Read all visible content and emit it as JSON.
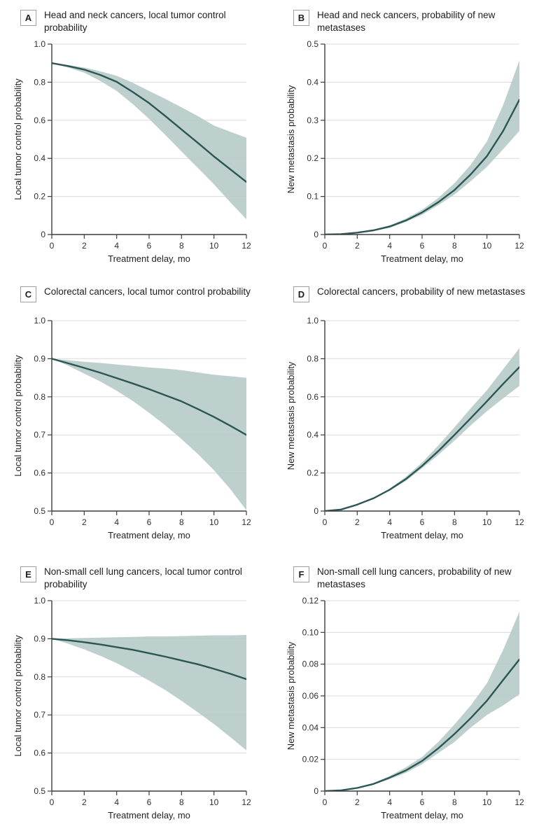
{
  "figure": {
    "colors": {
      "line": "#2b5653",
      "band": "#b5cac7",
      "band_opacity": 0.88,
      "grid": "#d9dcdb",
      "axis": "#3c3d3f",
      "text": "#1c1d1e",
      "badge_border": "#9da1a4"
    }
  },
  "chart_data": [
    {
      "type": "line",
      "panel_label": "A",
      "title": "Head and neck cancers, local tumor control probability",
      "xlabel": "Treatment delay, mo",
      "ylabel": "Local tumor control probability",
      "xlim": [
        0,
        12
      ],
      "ylim": [
        0,
        1.0
      ],
      "xtick_values": [
        0,
        2,
        4,
        6,
        8,
        10,
        12
      ],
      "xtick_labels": [
        "0",
        "2",
        "4",
        "6",
        "8",
        "10",
        "12"
      ],
      "ytick_values": [
        0,
        0.2,
        0.4,
        0.6,
        0.8,
        1.0
      ],
      "ytick_labels": [
        "0",
        "0.2",
        "0.4",
        "0.6",
        "0.8",
        "1.0"
      ],
      "x": [
        0,
        1,
        2,
        3,
        4,
        5,
        6,
        7,
        8,
        9,
        10,
        11,
        12
      ],
      "line": [
        0.9,
        0.885,
        0.866,
        0.838,
        0.802,
        0.748,
        0.69,
        0.622,
        0.552,
        0.482,
        0.41,
        0.343,
        0.276
      ],
      "band_upper": [
        0.9,
        0.89,
        0.877,
        0.857,
        0.834,
        0.797,
        0.754,
        0.712,
        0.668,
        0.622,
        0.572,
        0.54,
        0.508
      ],
      "band_lower": [
        0.9,
        0.877,
        0.85,
        0.806,
        0.754,
        0.685,
        0.607,
        0.523,
        0.436,
        0.35,
        0.264,
        0.17,
        0.08
      ],
      "grid": true,
      "legend": "none"
    },
    {
      "type": "line",
      "panel_label": "B",
      "title": "Head and neck cancers, probability of new metastases",
      "xlabel": "Treatment delay, mo",
      "ylabel": "New metastasis probability",
      "xlim": [
        0,
        12
      ],
      "ylim": [
        0,
        0.5
      ],
      "xtick_values": [
        0,
        2,
        4,
        6,
        8,
        10,
        12
      ],
      "xtick_labels": [
        "0",
        "2",
        "4",
        "6",
        "8",
        "10",
        "12"
      ],
      "ytick_values": [
        0,
        0.1,
        0.2,
        0.3,
        0.4,
        0.5
      ],
      "ytick_labels": [
        "0",
        "0.1",
        "0.2",
        "0.3",
        "0.4",
        "0.5"
      ],
      "x": [
        0,
        1,
        2,
        3,
        4,
        5,
        6,
        7,
        8,
        9,
        10,
        11,
        12
      ],
      "line": [
        0,
        0.001,
        0.005,
        0.011,
        0.021,
        0.037,
        0.058,
        0.085,
        0.117,
        0.158,
        0.206,
        0.272,
        0.354
      ],
      "band_upper": [
        0,
        0.001,
        0.006,
        0.013,
        0.024,
        0.042,
        0.065,
        0.096,
        0.135,
        0.183,
        0.245,
        0.34,
        0.457
      ],
      "band_lower": [
        0,
        0.001,
        0.004,
        0.009,
        0.018,
        0.033,
        0.052,
        0.077,
        0.105,
        0.14,
        0.178,
        0.224,
        0.272
      ],
      "grid": true,
      "legend": "none"
    },
    {
      "type": "line",
      "panel_label": "C",
      "title": "Colorectal cancers, local tumor control probability",
      "xlabel": "Treatment delay, mo",
      "ylabel": "Local tumor control probability",
      "xlim": [
        0,
        12
      ],
      "ylim": [
        0.5,
        1.0
      ],
      "xtick_values": [
        0,
        2,
        4,
        6,
        8,
        10,
        12
      ],
      "xtick_labels": [
        "0",
        "2",
        "4",
        "6",
        "8",
        "10",
        "12"
      ],
      "ytick_values": [
        0.5,
        0.6,
        0.7,
        0.8,
        0.9,
        1.0
      ],
      "ytick_labels": [
        "0.5",
        "0.6",
        "0.7",
        "0.8",
        "0.9",
        "1.0"
      ],
      "x": [
        0,
        1,
        2,
        3,
        4,
        5,
        6,
        7,
        8,
        9,
        10,
        11,
        12
      ],
      "line": [
        0.9,
        0.888,
        0.876,
        0.863,
        0.849,
        0.835,
        0.82,
        0.804,
        0.788,
        0.768,
        0.747,
        0.724,
        0.7
      ],
      "band_upper": [
        0.9,
        0.896,
        0.892,
        0.889,
        0.885,
        0.881,
        0.877,
        0.874,
        0.87,
        0.864,
        0.858,
        0.854,
        0.85
      ],
      "band_lower": [
        0.9,
        0.882,
        0.861,
        0.84,
        0.816,
        0.789,
        0.758,
        0.725,
        0.689,
        0.65,
        0.607,
        0.558,
        0.502
      ],
      "grid": true,
      "legend": "none"
    },
    {
      "type": "line",
      "panel_label": "D",
      "title": "Colorectal cancers, probability of new metastases",
      "xlabel": "Treatment delay, mo",
      "ylabel": "New metastasis probability",
      "xlim": [
        0,
        12
      ],
      "ylim": [
        0,
        1.0
      ],
      "xtick_values": [
        0,
        2,
        4,
        6,
        8,
        10,
        12
      ],
      "xtick_labels": [
        "0",
        "2",
        "4",
        "6",
        "8",
        "10",
        "12"
      ],
      "ytick_values": [
        0,
        0.2,
        0.4,
        0.6,
        0.8,
        1.0
      ],
      "ytick_labels": [
        "0",
        "0.2",
        "0.4",
        "0.6",
        "0.8",
        "1.0"
      ],
      "x": [
        0,
        1,
        2,
        3,
        4,
        5,
        6,
        7,
        8,
        9,
        10,
        11,
        12
      ],
      "line": [
        0,
        0.008,
        0.034,
        0.067,
        0.112,
        0.168,
        0.237,
        0.315,
        0.4,
        0.488,
        0.577,
        0.668,
        0.756
      ],
      "band_upper": [
        0,
        0.008,
        0.035,
        0.07,
        0.118,
        0.18,
        0.255,
        0.345,
        0.44,
        0.54,
        0.635,
        0.745,
        0.856
      ],
      "band_lower": [
        0,
        0.008,
        0.033,
        0.064,
        0.107,
        0.158,
        0.225,
        0.295,
        0.37,
        0.45,
        0.525,
        0.592,
        0.657
      ],
      "grid": true,
      "legend": "none"
    },
    {
      "type": "line",
      "panel_label": "E",
      "title": "Non-small cell lung cancers, local tumor control probability",
      "xlabel": "Treatment delay, mo",
      "ylabel": "Local tumor control probability",
      "xlim": [
        0,
        12
      ],
      "ylim": [
        0.5,
        1.0
      ],
      "xtick_values": [
        0,
        2,
        4,
        6,
        8,
        10,
        12
      ],
      "xtick_labels": [
        "0",
        "2",
        "4",
        "6",
        "8",
        "10",
        "12"
      ],
      "ytick_values": [
        0.5,
        0.6,
        0.7,
        0.8,
        0.9,
        1.0
      ],
      "ytick_labels": [
        "0.5",
        "0.6",
        "0.7",
        "0.8",
        "0.9",
        "1.0"
      ],
      "x": [
        0,
        1,
        2,
        3,
        4,
        5,
        6,
        7,
        8,
        9,
        10,
        11,
        12
      ],
      "line": [
        0.9,
        0.896,
        0.891,
        0.885,
        0.878,
        0.871,
        0.862,
        0.853,
        0.843,
        0.833,
        0.821,
        0.808,
        0.794
      ],
      "band_upper": [
        0.9,
        0.901,
        0.902,
        0.903,
        0.904,
        0.905,
        0.906,
        0.906,
        0.907,
        0.908,
        0.909,
        0.909,
        0.91
      ],
      "band_lower": [
        0.9,
        0.887,
        0.872,
        0.855,
        0.836,
        0.814,
        0.79,
        0.765,
        0.737,
        0.707,
        0.676,
        0.642,
        0.607
      ],
      "grid": true,
      "legend": "none"
    },
    {
      "type": "line",
      "panel_label": "F",
      "title": "Non-small cell lung cancers, probability of new metastases",
      "xlabel": "Treatment delay, mo",
      "ylabel": "New metastasis probability",
      "xlim": [
        0,
        12
      ],
      "ylim": [
        0,
        0.12
      ],
      "xtick_values": [
        0,
        2,
        4,
        6,
        8,
        10,
        12
      ],
      "xtick_labels": [
        "0",
        "2",
        "4",
        "6",
        "8",
        "10",
        "12"
      ],
      "ytick_values": [
        0,
        0.02,
        0.04,
        0.06,
        0.08,
        0.1,
        0.12
      ],
      "ytick_labels": [
        "0",
        "0.02",
        "0.04",
        "0.06",
        "0.08",
        "0.10",
        "0.12"
      ],
      "x": [
        0,
        1,
        2,
        3,
        4,
        5,
        6,
        7,
        8,
        9,
        10,
        11,
        12
      ],
      "line": [
        0,
        0.0005,
        0.002,
        0.0045,
        0.0085,
        0.013,
        0.019,
        0.027,
        0.036,
        0.046,
        0.057,
        0.07,
        0.083
      ],
      "band_upper": [
        0,
        0.0005,
        0.0022,
        0.005,
        0.0095,
        0.015,
        0.0215,
        0.031,
        0.042,
        0.054,
        0.068,
        0.089,
        0.113
      ],
      "band_lower": [
        0,
        0.0005,
        0.0018,
        0.004,
        0.0075,
        0.0115,
        0.017,
        0.024,
        0.031,
        0.04,
        0.048,
        0.054,
        0.061
      ],
      "grid": true,
      "legend": "none"
    }
  ]
}
